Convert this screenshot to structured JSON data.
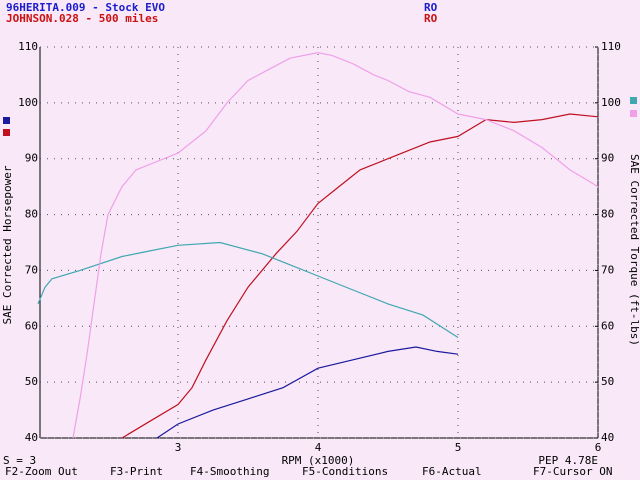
{
  "chart_data": {
    "type": "line",
    "runs": [
      {
        "label": "96HERITA.009 - Stock EVO",
        "code": "RO",
        "color": "#1c1ccc"
      },
      {
        "label": "JOHNSON.028 - 500 miles",
        "code": "RO",
        "color": "#cc1010"
      }
    ],
    "ylabel": "SAE Corrected Horsepower",
    "y2label": "SAE Corrected Torque (ft-lbs)",
    "xlabel": "RPM (x1000)",
    "left_note": "S = 3",
    "right_note": "PEP 4.78E",
    "xlim": [
      2,
      6
    ],
    "xticks": [
      3,
      4,
      5,
      6
    ],
    "ylim": [
      40,
      110
    ],
    "yticks": [
      40,
      50,
      60,
      70,
      80,
      90,
      100,
      110
    ],
    "y2lim": [
      40,
      110
    ],
    "y2ticks": [
      40,
      50,
      60,
      70,
      80,
      90,
      100,
      110
    ],
    "grid": true,
    "series": [
      {
        "color": "#1a1a9c",
        "x": [
          2.85,
          3.0,
          3.25,
          3.5,
          3.75,
          4.0,
          4.25,
          4.5,
          4.7,
          4.85,
          5.0
        ],
        "values": [
          40,
          42.5,
          45,
          47,
          49,
          52.5,
          54,
          55.5,
          56.3,
          55.5,
          55
        ]
      },
      {
        "color": "#c01020",
        "x": [
          2.6,
          2.8,
          3.0,
          3.1,
          3.2,
          3.35,
          3.5,
          3.7,
          3.85,
          4.0,
          4.15,
          4.3,
          4.5,
          4.65,
          4.8,
          5.0,
          5.2,
          5.4,
          5.6,
          5.8,
          6.0
        ],
        "values": [
          40,
          43,
          46,
          49,
          54,
          61,
          67,
          73,
          77,
          82,
          85,
          88,
          90,
          91.5,
          93,
          94,
          97,
          96.5,
          97,
          98,
          97.5
        ]
      },
      {
        "color": "#40a8b0",
        "axis": "y2",
        "x": [
          2.0,
          2.05,
          2.1,
          2.3,
          2.6,
          2.8,
          3.0,
          3.3,
          3.6,
          3.8,
          4.0,
          4.25,
          4.5,
          4.75,
          5.0
        ],
        "values": [
          64,
          67,
          68.5,
          70,
          72.5,
          73.5,
          74.5,
          75,
          73,
          71,
          69,
          66.5,
          64,
          62,
          58
        ]
      },
      {
        "color": "#f0a0e8",
        "axis": "y2",
        "x": [
          2.25,
          2.3,
          2.35,
          2.45,
          2.5,
          2.6,
          2.7,
          2.85,
          3.0,
          3.2,
          3.35,
          3.5,
          3.65,
          3.8,
          4.0,
          4.1,
          4.25,
          4.4,
          4.5,
          4.65,
          4.8,
          5.0,
          5.2,
          5.4,
          5.6,
          5.8,
          6.0
        ],
        "values": [
          40,
          47,
          55,
          73,
          80,
          85,
          88,
          89.5,
          91,
          95,
          100,
          104,
          106,
          108,
          109,
          108.5,
          107,
          105,
          104,
          102,
          101,
          98,
          97,
          95,
          92,
          88,
          85
        ]
      }
    ]
  },
  "status_bar": [
    "F2-Zoom Out",
    "F3-Print",
    "F4-Smoothing",
    "F5-Conditions",
    "F6-Actual",
    "F7-Cursor ON"
  ]
}
